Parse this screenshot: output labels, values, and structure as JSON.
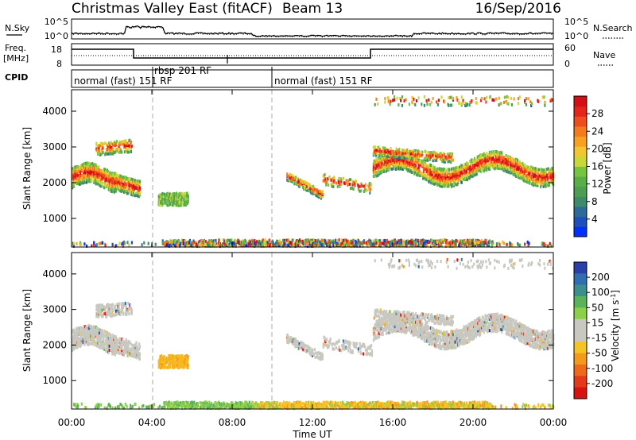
{
  "header": {
    "title": "Christmas Valley East (fitACF)",
    "beam": "Beam 13",
    "date": "16/Sep/2016"
  },
  "noise_panel": {
    "left_label": "N.Sky",
    "right_label": "N.Search",
    "left_ticks": [
      "10^5",
      "10^0"
    ],
    "right_ticks": [
      "10^5",
      "10^0"
    ]
  },
  "freq_panel": {
    "left_label_1": "Freq.",
    "left_label_2": "[MHz]",
    "right_label": "Nave",
    "left_ticks": [
      "18",
      "8"
    ],
    "right_ticks": [
      "60",
      "0"
    ]
  },
  "cpid_panel": {
    "label": "CPID",
    "modes": [
      "normal (fast) 151 RF",
      "rbsp 201 RF",
      "normal (fast) 151 RF"
    ]
  },
  "x_axis": {
    "label": "Time UT",
    "ticks": [
      "00:00",
      "04:00",
      "08:00",
      "12:00",
      "16:00",
      "20:00",
      "00:00"
    ]
  },
  "chart_data": [
    {
      "type": "heatmap",
      "panel": "power",
      "ylabel": "Slant Range [km]",
      "yticks": [
        1000,
        2000,
        3000,
        4000
      ],
      "ylim": [
        200,
        4600
      ],
      "xlim": [
        0,
        24
      ],
      "colorbar_label": "Power [dB]",
      "colorbar_ticks": [
        4,
        8,
        12,
        16,
        20,
        24,
        28
      ],
      "colorbar_colors": [
        "#0030ff",
        "#1d4fbf",
        "#2d6a9a",
        "#3d8a6c",
        "#4e9d55",
        "#5aae47",
        "#77c443",
        "#c6d83a",
        "#f0c730",
        "#f7a11e",
        "#f47a1d",
        "#ee4d1d",
        "#e5241c",
        "#d40f15"
      ]
    },
    {
      "type": "heatmap",
      "panel": "velocity",
      "ylabel": "Slant Range [km]",
      "yticks": [
        1000,
        2000,
        3000,
        4000
      ],
      "ylim": [
        200,
        4600
      ],
      "xlim": [
        0,
        24
      ],
      "colorbar_label": "Velocity [m s^-1]",
      "colorbar_ticks": [
        200,
        100,
        50,
        15,
        -15,
        -50,
        -100,
        -200
      ],
      "colorbar_colors": [
        "#2940a8",
        "#2f6fb0",
        "#3c8f8b",
        "#5ab25a",
        "#8cd04a",
        "#c8c8c0",
        "#c8c8c0",
        "#f6c325",
        "#f39a1b",
        "#ee6a1a",
        "#e53a1a",
        "#d8120f"
      ]
    }
  ]
}
